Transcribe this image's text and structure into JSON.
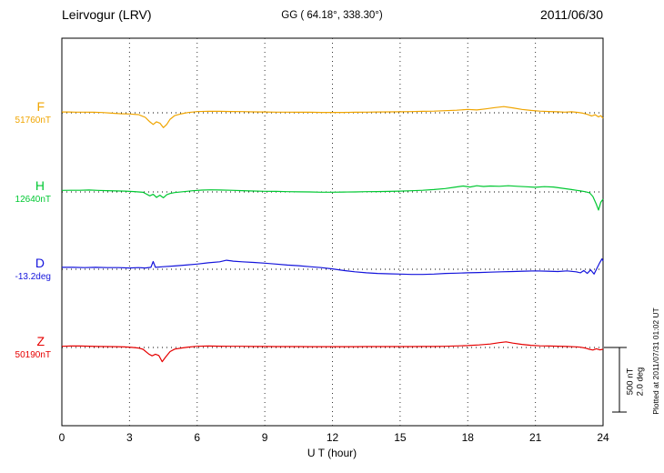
{
  "header": {
    "station": "Leirvogur (LRV)",
    "coords": "GG ( 64.18°, 338.30°)",
    "date": "2011/06/30"
  },
  "footer": {
    "plotted_at": "Plotted at 2011/07/31 01:02 UT"
  },
  "chart_data": {
    "type": "line",
    "title": "Leirvogur (LRV) magnetogram 2011/06/30",
    "xlabel": "U T (hour)",
    "xlim": [
      0,
      24
    ],
    "x_ticks": [
      0,
      3,
      6,
      9,
      12,
      15,
      18,
      21,
      24
    ],
    "grid": "vertical dotted at 3-hour intervals, dotted baseline per trace",
    "divisions": {
      "nT": 500,
      "deg": 2.0
    },
    "scale_bar": {
      "nt_label": "500 nT",
      "deg_label": "2.0 deg"
    },
    "series": [
      {
        "name": "F",
        "unit": "nT",
        "baseline_label": "51760nT",
        "color": "#f0a500",
        "points": [
          [
            0,
            6
          ],
          [
            0.3,
            6
          ],
          [
            0.6,
            5
          ],
          [
            1,
            5
          ],
          [
            1.4,
            4
          ],
          [
            1.8,
            2
          ],
          [
            2.2,
            -3
          ],
          [
            2.6,
            -7
          ],
          [
            3,
            -9
          ],
          [
            3.4,
            -14
          ],
          [
            3.7,
            -35
          ],
          [
            3.9,
            -70
          ],
          [
            4.05,
            -90
          ],
          [
            4.2,
            -70
          ],
          [
            4.35,
            -80
          ],
          [
            4.5,
            -115
          ],
          [
            4.65,
            -90
          ],
          [
            4.8,
            -50
          ],
          [
            5,
            -22
          ],
          [
            5.3,
            -8
          ],
          [
            5.6,
            2
          ],
          [
            6,
            9
          ],
          [
            6.5,
            12
          ],
          [
            7,
            11
          ],
          [
            7.5,
            10
          ],
          [
            8,
            9
          ],
          [
            8.5,
            7
          ],
          [
            9,
            6
          ],
          [
            9.5,
            5
          ],
          [
            10,
            5
          ],
          [
            10.5,
            4
          ],
          [
            11,
            4
          ],
          [
            11.5,
            3
          ],
          [
            12,
            3
          ],
          [
            12.5,
            3
          ],
          [
            13,
            4
          ],
          [
            13.5,
            5
          ],
          [
            14,
            6
          ],
          [
            14.5,
            7
          ],
          [
            15,
            8
          ],
          [
            15.5,
            9
          ],
          [
            16,
            11
          ],
          [
            16.5,
            13
          ],
          [
            17,
            16
          ],
          [
            17.5,
            20
          ],
          [
            18,
            26
          ],
          [
            18.4,
            22
          ],
          [
            18.8,
            30
          ],
          [
            19.2,
            40
          ],
          [
            19.6,
            48
          ],
          [
            20,
            38
          ],
          [
            20.4,
            26
          ],
          [
            20.8,
            18
          ],
          [
            21.2,
            13
          ],
          [
            21.6,
            10
          ],
          [
            22,
            8
          ],
          [
            22.3,
            5
          ],
          [
            22.6,
            8
          ],
          [
            22.9,
            3
          ],
          [
            23.1,
            -3
          ],
          [
            23.3,
            -12
          ],
          [
            23.5,
            -25
          ],
          [
            23.65,
            -15
          ],
          [
            23.8,
            -32
          ],
          [
            23.9,
            -22
          ],
          [
            24,
            -42
          ]
        ]
      },
      {
        "name": "H",
        "unit": "nT",
        "baseline_label": "12640nT",
        "color": "#00c832",
        "points": [
          [
            0,
            12
          ],
          [
            0.4,
            13
          ],
          [
            0.8,
            13
          ],
          [
            1.2,
            15
          ],
          [
            1.6,
            12
          ],
          [
            2,
            10
          ],
          [
            2.4,
            8
          ],
          [
            2.8,
            6
          ],
          [
            3.2,
            3
          ],
          [
            3.6,
            -3
          ],
          [
            3.9,
            -30
          ],
          [
            4.05,
            -18
          ],
          [
            4.2,
            -42
          ],
          [
            4.35,
            -25
          ],
          [
            4.5,
            -45
          ],
          [
            4.65,
            -22
          ],
          [
            4.8,
            -12
          ],
          [
            5,
            -5
          ],
          [
            5.4,
            2
          ],
          [
            5.8,
            9
          ],
          [
            6.2,
            14
          ],
          [
            6.6,
            16
          ],
          [
            7,
            15
          ],
          [
            7.5,
            13
          ],
          [
            8,
            10
          ],
          [
            8.5,
            7
          ],
          [
            9,
            5
          ],
          [
            9.5,
            4
          ],
          [
            10,
            2
          ],
          [
            10.5,
            1
          ],
          [
            11,
            0
          ],
          [
            11.5,
            -2
          ],
          [
            12,
            -2
          ],
          [
            12.5,
            -1
          ],
          [
            13,
            0
          ],
          [
            13.5,
            2
          ],
          [
            14,
            3
          ],
          [
            14.5,
            4
          ],
          [
            15,
            6
          ],
          [
            15.5,
            9
          ],
          [
            16,
            13
          ],
          [
            16.5,
            18
          ],
          [
            17,
            26
          ],
          [
            17.4,
            36
          ],
          [
            17.8,
            46
          ],
          [
            18.1,
            38
          ],
          [
            18.4,
            48
          ],
          [
            18.7,
            42
          ],
          [
            19,
            46
          ],
          [
            19.4,
            44
          ],
          [
            19.8,
            48
          ],
          [
            20.2,
            44
          ],
          [
            20.6,
            40
          ],
          [
            21,
            36
          ],
          [
            21.4,
            41
          ],
          [
            21.8,
            38
          ],
          [
            22.2,
            28
          ],
          [
            22.6,
            18
          ],
          [
            23,
            8
          ],
          [
            23.2,
            2
          ],
          [
            23.4,
            -6
          ],
          [
            23.55,
            -35
          ],
          [
            23.7,
            -95
          ],
          [
            23.8,
            -140
          ],
          [
            23.9,
            -80
          ],
          [
            24,
            -55
          ]
        ]
      },
      {
        "name": "D",
        "unit": "deg",
        "baseline_label": "-13.2deg",
        "color": "#1414dc",
        "points": [
          [
            0,
            0.06
          ],
          [
            0.5,
            0.06
          ],
          [
            1,
            0.05
          ],
          [
            1.5,
            0.06
          ],
          [
            2,
            0.05
          ],
          [
            2.5,
            0.05
          ],
          [
            3,
            0.04
          ],
          [
            3.4,
            0.05
          ],
          [
            3.7,
            0.04
          ],
          [
            3.95,
            0.06
          ],
          [
            4.05,
            0.24
          ],
          [
            4.15,
            0.06
          ],
          [
            4.5,
            0.08
          ],
          [
            5,
            0.1
          ],
          [
            5.5,
            0.13
          ],
          [
            6,
            0.16
          ],
          [
            6.5,
            0.2
          ],
          [
            7,
            0.23
          ],
          [
            7.3,
            0.28
          ],
          [
            7.6,
            0.25
          ],
          [
            8,
            0.23
          ],
          [
            8.5,
            0.21
          ],
          [
            9,
            0.19
          ],
          [
            9.5,
            0.16
          ],
          [
            10,
            0.13
          ],
          [
            10.5,
            0.11
          ],
          [
            11,
            0.08
          ],
          [
            11.5,
            0.05
          ],
          [
            12,
            0.01
          ],
          [
            12.5,
            -0.04
          ],
          [
            13,
            -0.08
          ],
          [
            13.5,
            -0.11
          ],
          [
            14,
            -0.13
          ],
          [
            14.5,
            -0.14
          ],
          [
            15,
            -0.15
          ],
          [
            15.5,
            -0.16
          ],
          [
            16,
            -0.16
          ],
          [
            16.5,
            -0.15
          ],
          [
            17,
            -0.13
          ],
          [
            17.5,
            -0.12
          ],
          [
            18,
            -0.11
          ],
          [
            18.5,
            -0.1
          ],
          [
            19,
            -0.09
          ],
          [
            19.5,
            -0.08
          ],
          [
            20,
            -0.07
          ],
          [
            20.5,
            -0.06
          ],
          [
            21,
            -0.05
          ],
          [
            21.5,
            -0.06
          ],
          [
            22,
            -0.07
          ],
          [
            22.4,
            -0.05
          ],
          [
            22.8,
            -0.08
          ],
          [
            23,
            -0.11
          ],
          [
            23.15,
            -0.04
          ],
          [
            23.3,
            -0.13
          ],
          [
            23.45,
            -0.02
          ],
          [
            23.6,
            -0.15
          ],
          [
            23.75,
            0.06
          ],
          [
            23.85,
            0.2
          ],
          [
            23.95,
            0.32
          ],
          [
            24,
            0.26
          ]
        ]
      },
      {
        "name": "Z",
        "unit": "nT",
        "baseline_label": "50190nT",
        "color": "#e60000",
        "points": [
          [
            0,
            9
          ],
          [
            0.4,
            11
          ],
          [
            0.8,
            11
          ],
          [
            1.2,
            10
          ],
          [
            1.6,
            8
          ],
          [
            2,
            7
          ],
          [
            2.4,
            6
          ],
          [
            2.8,
            4
          ],
          [
            3.1,
            1
          ],
          [
            3.4,
            -4
          ],
          [
            3.6,
            -14
          ],
          [
            3.85,
            -50
          ],
          [
            4,
            -65
          ],
          [
            4.15,
            -52
          ],
          [
            4.3,
            -62
          ],
          [
            4.45,
            -110
          ],
          [
            4.6,
            -75
          ],
          [
            4.8,
            -32
          ],
          [
            5,
            -13
          ],
          [
            5.3,
            -4
          ],
          [
            5.6,
            3
          ],
          [
            6,
            9
          ],
          [
            6.5,
            11
          ],
          [
            7,
            10
          ],
          [
            7.5,
            9
          ],
          [
            8,
            9
          ],
          [
            8.5,
            8
          ],
          [
            9,
            8
          ],
          [
            9.5,
            7
          ],
          [
            10,
            7
          ],
          [
            10.5,
            7
          ],
          [
            11,
            6
          ],
          [
            11.5,
            6
          ],
          [
            12,
            6
          ],
          [
            12.5,
            6
          ],
          [
            13,
            6
          ],
          [
            13.5,
            7
          ],
          [
            14,
            7
          ],
          [
            14.5,
            7
          ],
          [
            15,
            7
          ],
          [
            15.5,
            7
          ],
          [
            16,
            8
          ],
          [
            16.5,
            8
          ],
          [
            17,
            9
          ],
          [
            17.5,
            12
          ],
          [
            18,
            15
          ],
          [
            18.5,
            20
          ],
          [
            19,
            27
          ],
          [
            19.4,
            37
          ],
          [
            19.7,
            44
          ],
          [
            20,
            34
          ],
          [
            20.4,
            24
          ],
          [
            20.8,
            17
          ],
          [
            21.2,
            13
          ],
          [
            21.6,
            11
          ],
          [
            22,
            10
          ],
          [
            22.4,
            8
          ],
          [
            22.8,
            5
          ],
          [
            23,
            2
          ],
          [
            23.2,
            -4
          ],
          [
            23.4,
            -14
          ],
          [
            23.55,
            -20
          ],
          [
            23.7,
            -10
          ],
          [
            23.85,
            -18
          ],
          [
            24,
            -14
          ]
        ]
      }
    ]
  }
}
